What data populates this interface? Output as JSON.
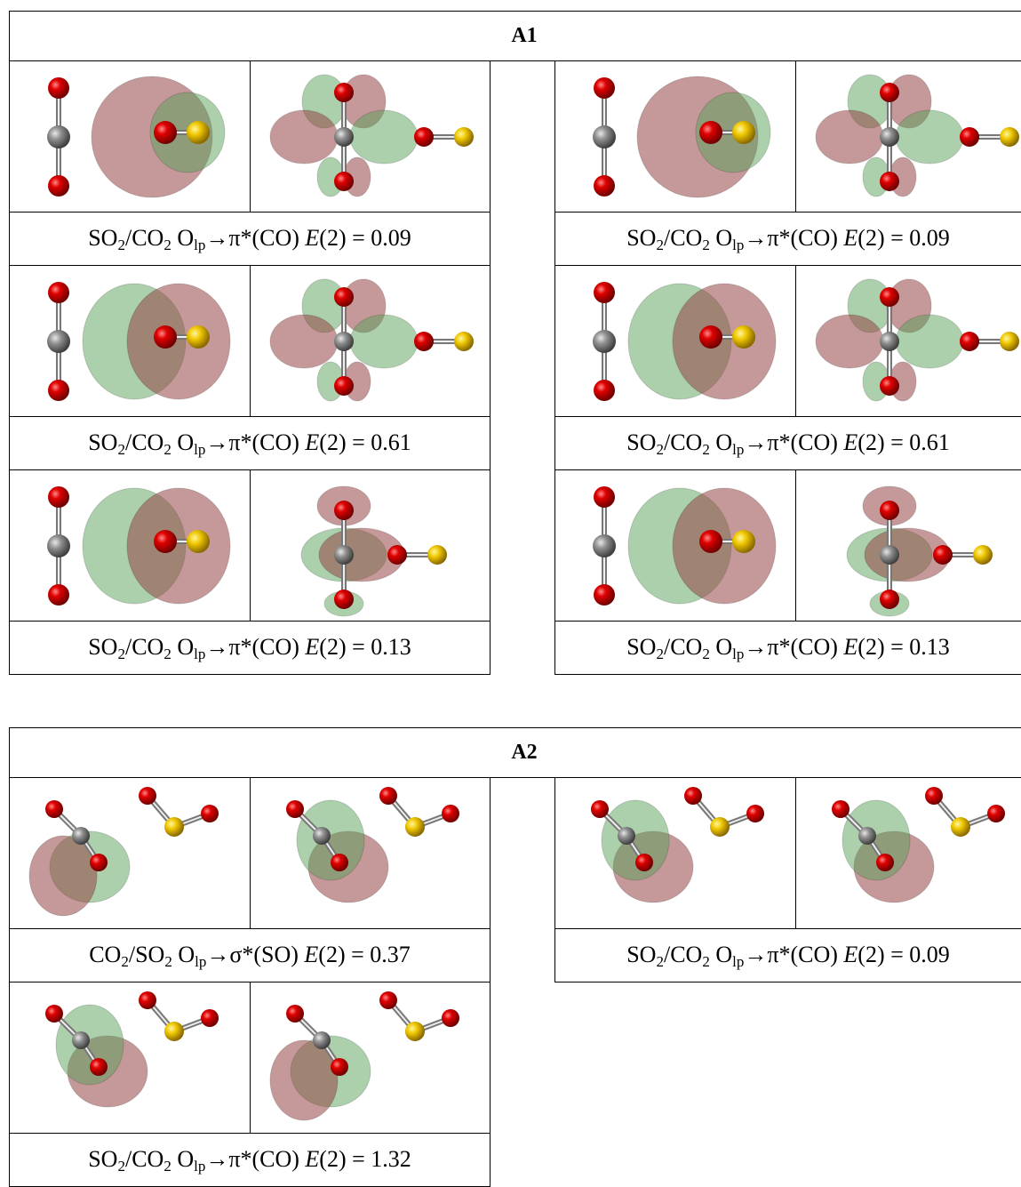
{
  "sections": [
    {
      "title": "A1",
      "left": [
        {
          "caption": [
            {
              "text": "SO"
            },
            {
              "text": "2",
              "style": "sub"
            },
            {
              "text": "/CO"
            },
            {
              "text": "2",
              "style": "sub"
            },
            {
              "text": " O"
            },
            {
              "text": "lp",
              "style": "sub"
            },
            {
              "text": "→π*(CO) "
            },
            {
              "text": "E",
              "style": "italic"
            },
            {
              "text": "(2) = 0.09"
            }
          ]
        },
        {
          "caption": [
            {
              "text": "SO"
            },
            {
              "text": "2",
              "style": "sub"
            },
            {
              "text": "/CO"
            },
            {
              "text": "2",
              "style": "sub"
            },
            {
              "text": " O"
            },
            {
              "text": "lp",
              "style": "sub"
            },
            {
              "text": "→π*(CO) "
            },
            {
              "text": "E",
              "style": "italic"
            },
            {
              "text": "(2) = 0.61"
            }
          ]
        },
        {
          "caption": [
            {
              "text": "SO"
            },
            {
              "text": "2",
              "style": "sub"
            },
            {
              "text": "/CO"
            },
            {
              "text": "2",
              "style": "sub"
            },
            {
              "text": " O"
            },
            {
              "text": "lp",
              "style": "sub"
            },
            {
              "text": "→π*(CO) "
            },
            {
              "text": "E",
              "style": "italic"
            },
            {
              "text": "(2) = 0.13"
            }
          ]
        }
      ],
      "right": [
        {
          "caption": [
            {
              "text": "SO"
            },
            {
              "text": "2",
              "style": "sub"
            },
            {
              "text": "/CO"
            },
            {
              "text": "2",
              "style": "sub"
            },
            {
              "text": " O"
            },
            {
              "text": "lp",
              "style": "sub"
            },
            {
              "text": "→π*(CO) "
            },
            {
              "text": "E",
              "style": "italic"
            },
            {
              "text": "(2) = 0.09"
            }
          ]
        },
        {
          "caption": [
            {
              "text": "SO"
            },
            {
              "text": "2",
              "style": "sub"
            },
            {
              "text": "/CO"
            },
            {
              "text": "2",
              "style": "sub"
            },
            {
              "text": " O"
            },
            {
              "text": "lp",
              "style": "sub"
            },
            {
              "text": "→π*(CO) "
            },
            {
              "text": "E",
              "style": "italic"
            },
            {
              "text": "(2) = 0.61"
            }
          ]
        },
        {
          "caption": [
            {
              "text": "SO"
            },
            {
              "text": "2",
              "style": "sub"
            },
            {
              "text": "/CO"
            },
            {
              "text": "2",
              "style": "sub"
            },
            {
              "text": " O"
            },
            {
              "text": "lp",
              "style": "sub"
            },
            {
              "text": "→π*(CO) "
            },
            {
              "text": "E",
              "style": "italic"
            },
            {
              "text": "(2) = 0.13"
            }
          ]
        }
      ]
    },
    {
      "title": "A2",
      "left": [
        {
          "caption": [
            {
              "text": "CO"
            },
            {
              "text": "2",
              "style": "sub"
            },
            {
              "text": "/SO"
            },
            {
              "text": "2",
              "style": "sub"
            },
            {
              "text": " O"
            },
            {
              "text": "lp",
              "style": "sub"
            },
            {
              "text": "→σ*(SO) "
            },
            {
              "text": "E",
              "style": "italic"
            },
            {
              "text": "(2) = 0.37"
            }
          ]
        },
        {
          "caption": [
            {
              "text": "SO"
            },
            {
              "text": "2",
              "style": "sub"
            },
            {
              "text": "/CO"
            },
            {
              "text": "2",
              "style": "sub"
            },
            {
              "text": " O"
            },
            {
              "text": "lp",
              "style": "sub"
            },
            {
              "text": "→π*(CO) "
            },
            {
              "text": "E",
              "style": "italic"
            },
            {
              "text": "(2) = 1.32"
            }
          ]
        }
      ],
      "right": [
        {
          "caption": [
            {
              "text": "SO"
            },
            {
              "text": "2",
              "style": "sub"
            },
            {
              "text": "/CO"
            },
            {
              "text": "2",
              "style": "sub"
            },
            {
              "text": " O"
            },
            {
              "text": "lp",
              "style": "sub"
            },
            {
              "text": "→π*(CO) "
            },
            {
              "text": "E",
              "style": "italic"
            },
            {
              "text": "(2) = 0.09"
            }
          ]
        }
      ]
    }
  ]
}
